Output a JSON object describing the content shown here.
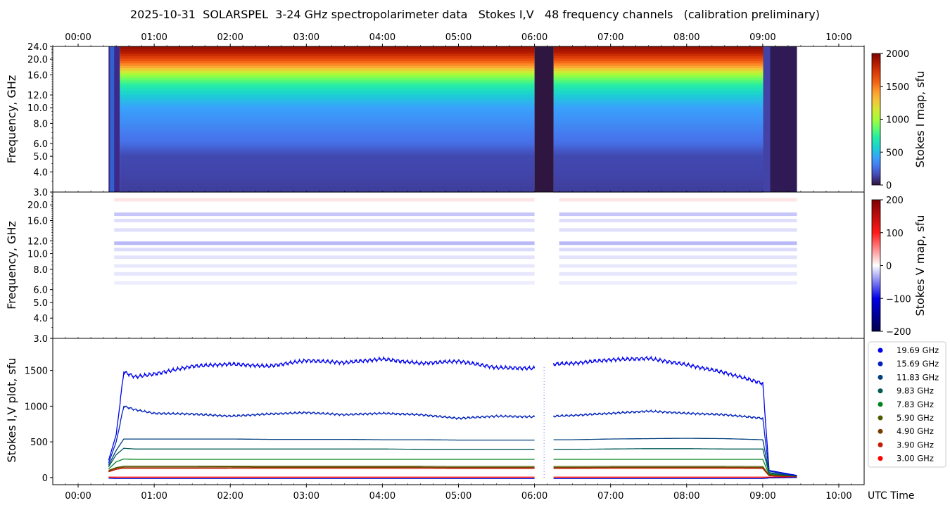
{
  "title": "2025-10-31  SOLARSPEL  3-24 GHz spectropolarimeter data   Stokes I,V   48 frequency channels   (calibration preliminary)",
  "colors": {
    "series": [
      "#0000ee",
      "#0022bb",
      "#003f7f",
      "#005a55",
      "#00821a",
      "#4d5c00",
      "#7a3d00",
      "#c41a00",
      "#ff0000"
    ]
  },
  "chart_data": [
    {
      "type": "heatmap",
      "panel": "Stokes I map",
      "ylabel": "Frequency, GHz",
      "yticks": [
        "3.0",
        "4.0",
        "5.0",
        "6.0",
        "8.0",
        "10.0",
        "12.0",
        "16.0",
        "20.0",
        "24.0"
      ],
      "ylim": [
        3.0,
        24.0
      ],
      "y_scale": "log",
      "x_ticks_top": [
        "00:00",
        "01:00",
        "02:00",
        "03:00",
        "04:00",
        "05:00",
        "06:00",
        "07:00",
        "08:00",
        "09:00",
        "10:00"
      ],
      "xlim": [
        "23:40",
        "10:20"
      ],
      "observation_start": "00:24",
      "observation_end": "09:27",
      "data_gap": [
        "06:00",
        "06:15"
      ],
      "colorbar": {
        "label": "Stokes I map, sfu",
        "ticks": [
          "0",
          "500",
          "1000",
          "1500",
          "2000"
        ],
        "range": [
          0,
          2000
        ],
        "colormap": "turbo"
      },
      "spectrum_sfu": {
        "frequencies": [
          3.0,
          4.0,
          5.0,
          6.0,
          8.0,
          10.0,
          12.0,
          14.0,
          16.0,
          17.0,
          18.0,
          20.0,
          22.0,
          24.0
        ],
        "values": [
          120,
          140,
          150,
          260,
          350,
          420,
          560,
          750,
          1000,
          1200,
          1400,
          1650,
          1850,
          1950
        ]
      }
    },
    {
      "type": "heatmap",
      "panel": "Stokes V map",
      "ylabel": "Frequency, GHz",
      "yticks": [
        "3.0",
        "4.0",
        "5.0",
        "6.0",
        "8.0",
        "10.0",
        "12.0",
        "16.0",
        "20.0"
      ],
      "ylim": [
        3.0,
        24.0
      ],
      "y_scale": "log",
      "colorbar": {
        "label": "Stokes V map, sfu",
        "ticks": [
          "−200",
          "−100",
          "0",
          "100",
          "200"
        ],
        "range": [
          -200,
          200
        ],
        "colormap": "seismic"
      },
      "bands_sfu": [
        {
          "freq": 17.5,
          "value": -45
        },
        {
          "freq": 16.0,
          "value": -25
        },
        {
          "freq": 14.0,
          "value": -25
        },
        {
          "freq": 11.6,
          "value": -55
        },
        {
          "freq": 10.6,
          "value": -28
        },
        {
          "freq": 9.5,
          "value": -22
        },
        {
          "freq": 8.4,
          "value": -18
        },
        {
          "freq": 7.5,
          "value": -20
        },
        {
          "freq": 6.6,
          "value": -14
        },
        {
          "freq": 21.5,
          "value": 20
        }
      ]
    },
    {
      "type": "scatter",
      "panel": "Stokes I,V plot",
      "ylabel": "Stokes I,V plot, sfu",
      "xlabel": "UTC Time",
      "yticks": [
        "0",
        "500",
        "1000",
        "1500"
      ],
      "ylim": [
        -100,
        1950
      ],
      "xticks": [
        "00:00",
        "01:00",
        "02:00",
        "03:00",
        "04:00",
        "05:00",
        "06:00",
        "07:00",
        "08:00",
        "09:00",
        "10:00"
      ],
      "legend_position": "right",
      "x": [
        "00:24",
        "00:30",
        "00:36",
        "00:45",
        "01:00",
        "01:30",
        "02:00",
        "02:30",
        "03:00",
        "03:30",
        "04:00",
        "04:30",
        "05:00",
        "05:30",
        "06:00",
        "06:15",
        "06:30",
        "07:00",
        "07:30",
        "08:00",
        "08:30",
        "09:00",
        "09:05",
        "09:27"
      ],
      "series": [
        {
          "name": "19.69 GHz",
          "values": [
            240,
            600,
            1480,
            1410,
            1450,
            1560,
            1590,
            1560,
            1640,
            1610,
            1660,
            1600,
            1630,
            1540,
            1530,
            1590,
            1600,
            1650,
            1670,
            1580,
            1470,
            1320,
            100,
            30
          ]
        },
        {
          "name": "15.69 GHz",
          "values": [
            200,
            500,
            1000,
            950,
            900,
            890,
            860,
            890,
            910,
            880,
            900,
            880,
            830,
            860,
            850,
            860,
            870,
            900,
            930,
            900,
            880,
            830,
            90,
            20
          ]
        },
        {
          "name": "11.83 GHz",
          "values": [
            170,
            380,
            540,
            540,
            540,
            540,
            540,
            535,
            535,
            535,
            530,
            530,
            525,
            525,
            525,
            530,
            530,
            540,
            545,
            550,
            545,
            530,
            70,
            15
          ]
        },
        {
          "name": "9.83 GHz",
          "values": [
            150,
            320,
            410,
            400,
            400,
            400,
            400,
            400,
            400,
            400,
            400,
            395,
            395,
            395,
            395,
            395,
            395,
            400,
            405,
            405,
            400,
            400,
            60,
            10
          ]
        },
        {
          "name": "7.83 GHz",
          "values": [
            120,
            220,
            260,
            255,
            255,
            255,
            255,
            255,
            255,
            255,
            255,
            255,
            255,
            255,
            255,
            255,
            255,
            255,
            255,
            255,
            255,
            255,
            45,
            8
          ]
        },
        {
          "name": "5.90 GHz",
          "values": [
            100,
            140,
            160,
            160,
            160,
            160,
            158,
            158,
            158,
            158,
            158,
            158,
            155,
            155,
            155,
            155,
            155,
            157,
            157,
            157,
            157,
            155,
            35,
            5
          ]
        },
        {
          "name": "4.90 GHz",
          "values": [
            90,
            130,
            145,
            145,
            145,
            145,
            145,
            143,
            143,
            143,
            143,
            143,
            140,
            140,
            140,
            140,
            140,
            142,
            142,
            142,
            142,
            140,
            30,
            5
          ]
        },
        {
          "name": "3.90 GHz",
          "values": [
            80,
            115,
            130,
            130,
            130,
            130,
            128,
            128,
            128,
            128,
            128,
            126,
            126,
            126,
            126,
            126,
            126,
            128,
            128,
            128,
            128,
            126,
            25,
            5
          ]
        },
        {
          "name": "3.00 GHz",
          "values": [
            5,
            5,
            5,
            5,
            5,
            5,
            5,
            5,
            5,
            5,
            5,
            5,
            5,
            5,
            5,
            5,
            5,
            5,
            5,
            5,
            5,
            5,
            5,
            5
          ]
        }
      ],
      "stokes_v_series": [
        {
          "near": 0,
          "values": [
            -10,
            -15,
            -15,
            -15,
            -15,
            -15,
            -15,
            -15,
            -15,
            -15,
            -15,
            -15,
            -15,
            -15,
            -15,
            -15,
            -15,
            -15,
            -15,
            -15,
            -15,
            -15,
            -5,
            0
          ]
        }
      ]
    }
  ]
}
